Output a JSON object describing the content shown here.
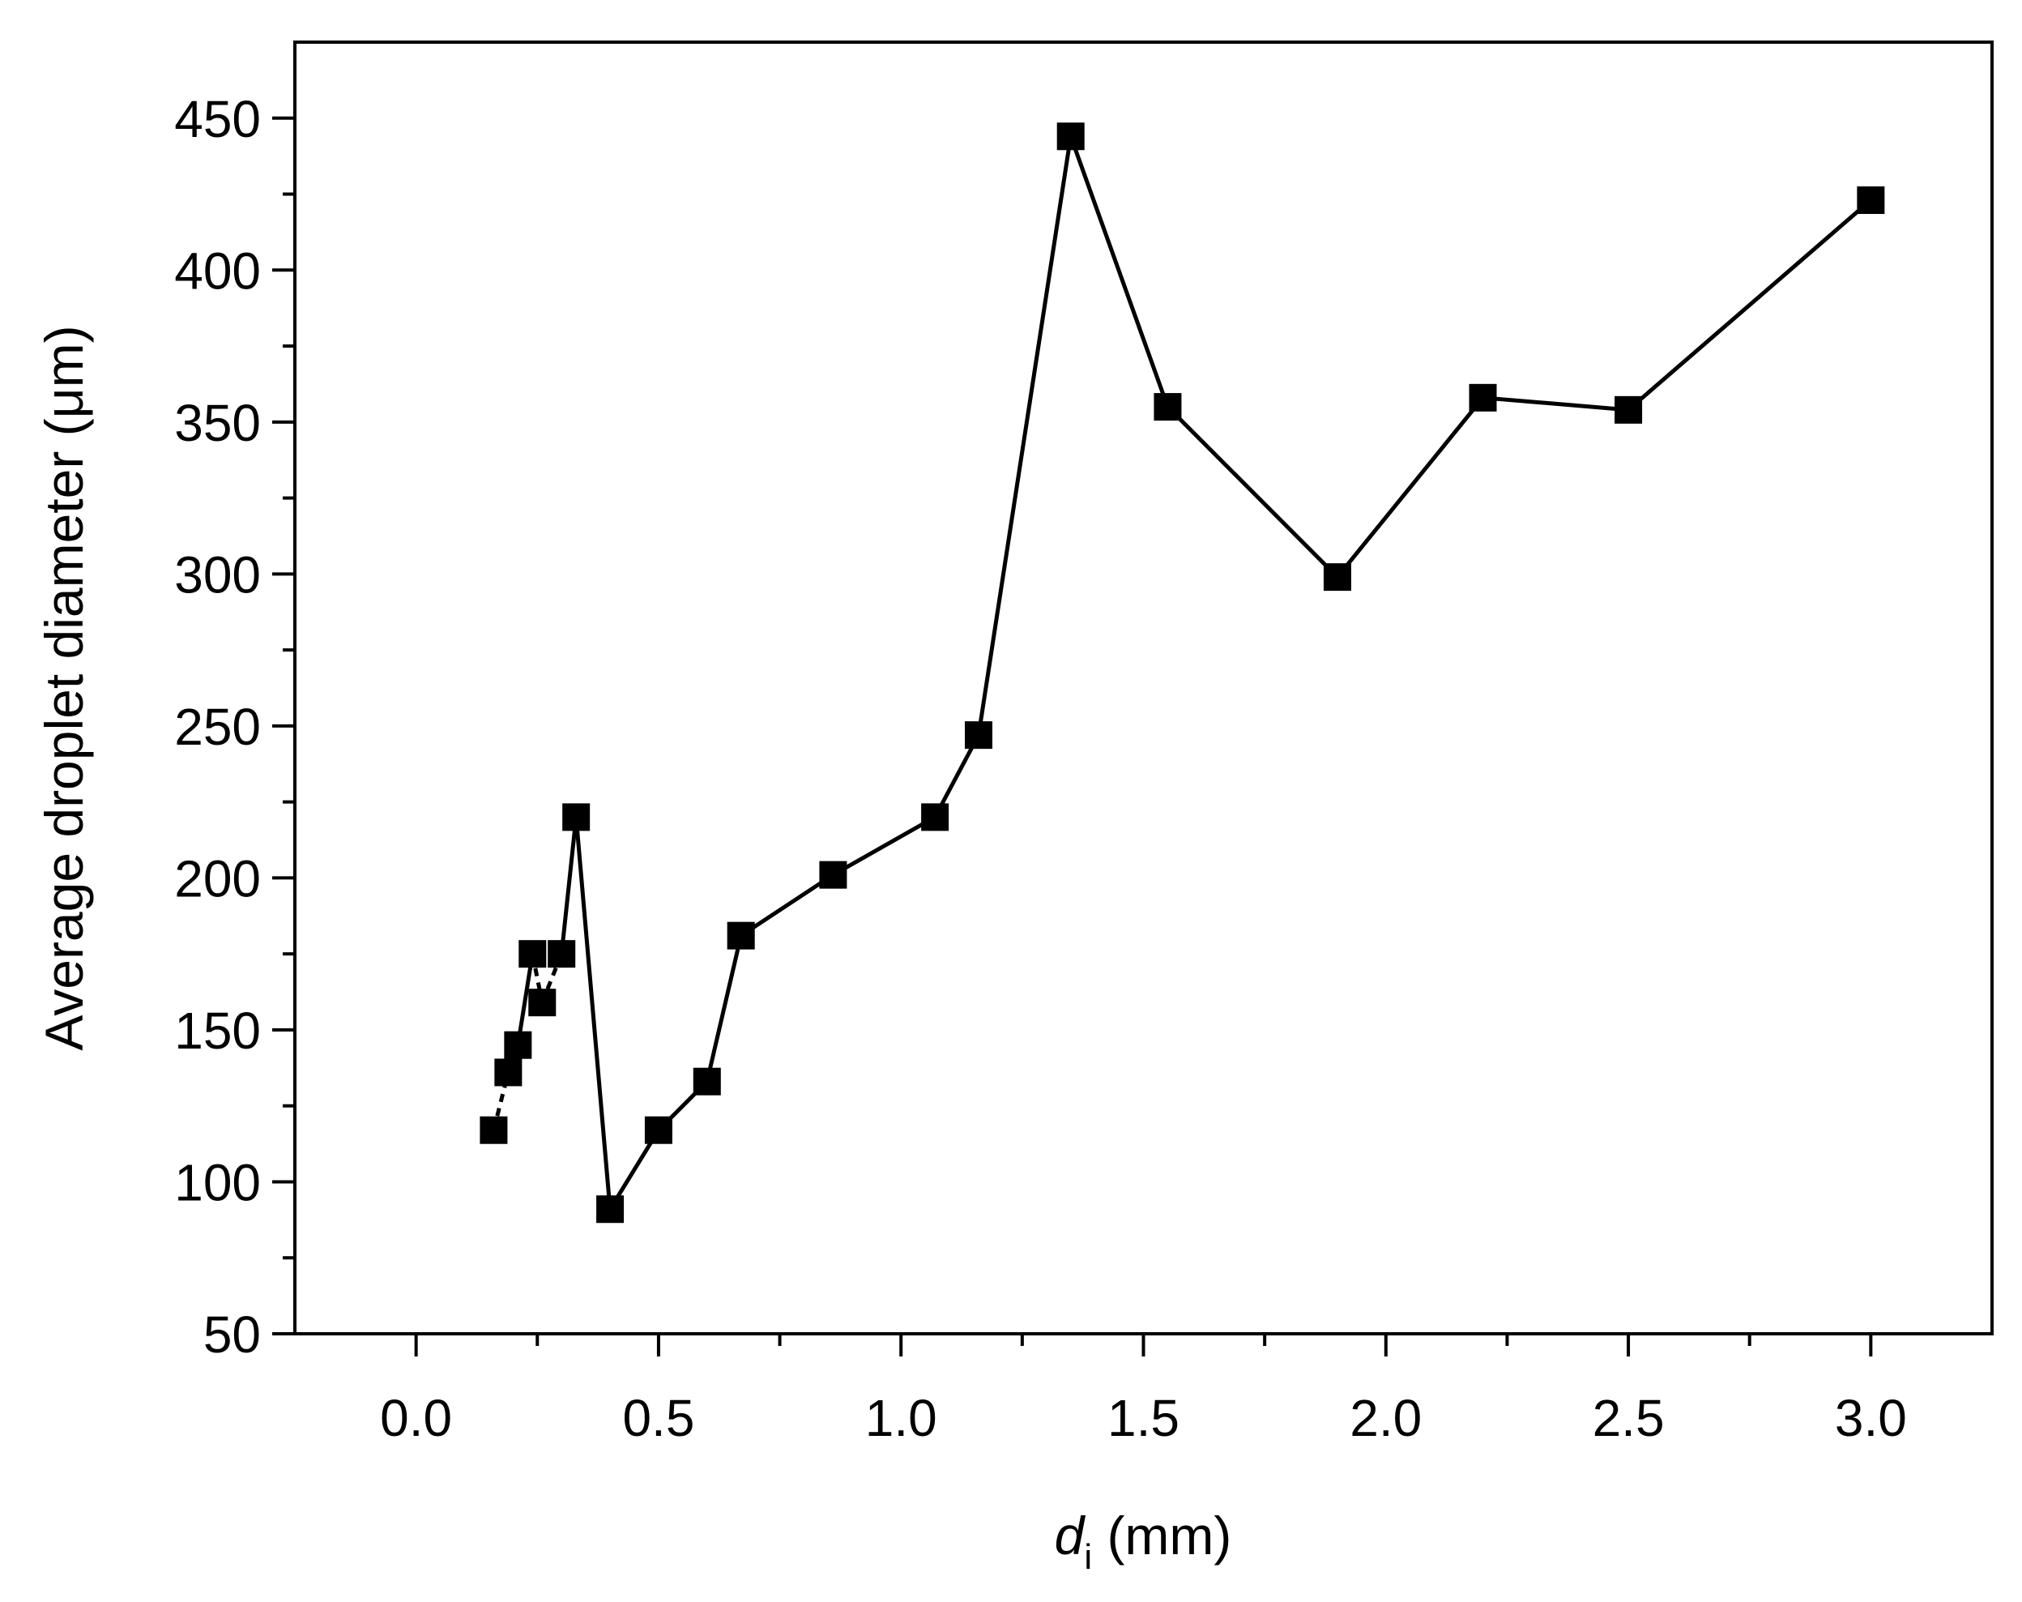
{
  "chart_data": {
    "type": "scatter",
    "xlabel": {
      "symbol": "d",
      "subscript": "i",
      "unit": " (mm)"
    },
    "ylabel": "Average droplet diameter (μm)",
    "xlim": [
      -0.25,
      3.25
    ],
    "ylim": [
      50,
      475
    ],
    "xticks": [
      0.0,
      0.5,
      1.0,
      1.5,
      2.0,
      2.5,
      3.0
    ],
    "xtick_labels": [
      "0.0",
      "0.5",
      "1.0",
      "1.5",
      "2.0",
      "2.5",
      "3.0"
    ],
    "yticks": [
      50,
      100,
      150,
      200,
      250,
      300,
      350,
      400,
      450
    ],
    "ytick_labels": [
      "50",
      "100",
      "150",
      "200",
      "250",
      "300",
      "350",
      "400",
      "450"
    ],
    "grid": false,
    "marker": "square",
    "color": "#000000",
    "series": [
      {
        "x": [
          0.16,
          0.19,
          0.21,
          0.24,
          0.26,
          0.3,
          0.33,
          0.4,
          0.5,
          0.6,
          0.67,
          0.86,
          1.07,
          1.16,
          1.35,
          1.55,
          1.9,
          2.2,
          2.5,
          3.0
        ],
        "y": [
          117,
          136,
          145,
          175,
          159,
          175,
          220,
          91,
          117,
          133,
          181,
          201,
          220,
          247,
          444,
          355,
          299,
          358,
          354,
          423
        ]
      }
    ],
    "segments": [
      {
        "from": 0,
        "to": 1,
        "style": "dashed"
      },
      {
        "from": 1,
        "to": 2,
        "style": "solid"
      },
      {
        "from": 2,
        "to": 3,
        "style": "solid"
      },
      {
        "from": 3,
        "to": 4,
        "style": "dashed"
      },
      {
        "from": 4,
        "to": 5,
        "style": "dashed"
      },
      {
        "from": 5,
        "to": 6,
        "style": "solid"
      },
      {
        "from": 6,
        "to": 7,
        "style": "solid"
      },
      {
        "from": 7,
        "to": 8,
        "style": "solid"
      },
      {
        "from": 8,
        "to": 9,
        "style": "solid"
      },
      {
        "from": 9,
        "to": 10,
        "style": "solid"
      },
      {
        "from": 10,
        "to": 11,
        "style": "solid"
      },
      {
        "from": 11,
        "to": 12,
        "style": "solid"
      },
      {
        "from": 12,
        "to": 13,
        "style": "solid"
      },
      {
        "from": 13,
        "to": 14,
        "style": "solid"
      },
      {
        "from": 14,
        "to": 15,
        "style": "solid"
      },
      {
        "from": 15,
        "to": 16,
        "style": "solid"
      },
      {
        "from": 16,
        "to": 17,
        "style": "solid"
      },
      {
        "from": 17,
        "to": 18,
        "style": "solid"
      },
      {
        "from": 18,
        "to": 19,
        "style": "solid"
      }
    ]
  }
}
